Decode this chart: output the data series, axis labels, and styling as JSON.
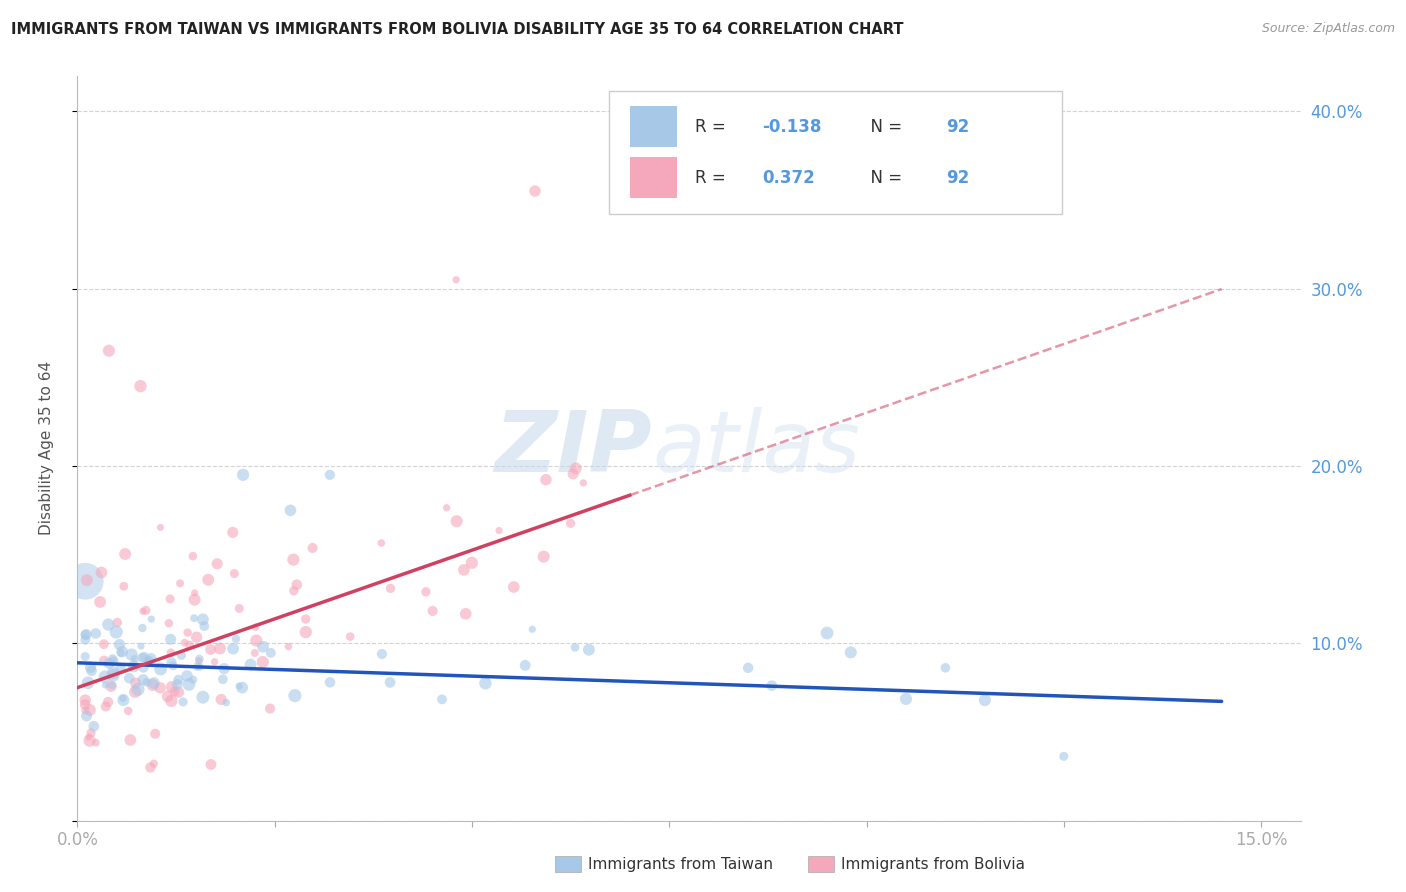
{
  "title": "IMMIGRANTS FROM TAIWAN VS IMMIGRANTS FROM BOLIVIA DISABILITY AGE 35 TO 64 CORRELATION CHART",
  "source": "Source: ZipAtlas.com",
  "ylabel_label": "Disability Age 35 to 64",
  "xlim": [
    0.0,
    0.155
  ],
  "ylim": [
    0.0,
    0.42
  ],
  "taiwan_R": -0.138,
  "taiwan_N": 92,
  "bolivia_R": 0.372,
  "bolivia_N": 92,
  "taiwan_color": "#a8c8e8",
  "bolivia_color": "#f5a8bc",
  "taiwan_line_color": "#2255bb",
  "bolivia_line_color": "#d04060",
  "background_color": "#ffffff",
  "grid_color": "#cccccc",
  "watermark_zip": "ZIP",
  "watermark_atlas": "atlas",
  "legend_label_taiwan": "Immigrants from Taiwan",
  "legend_label_bolivia": "Immigrants from Bolivia",
  "axis_label_color": "#5599dd",
  "title_color": "#222222",
  "source_color": "#999999",
  "tw_intercept": 0.089,
  "tw_slope": -0.15,
  "bo_intercept": 0.075,
  "bo_slope": 1.55,
  "bo_solid_max": 0.07
}
